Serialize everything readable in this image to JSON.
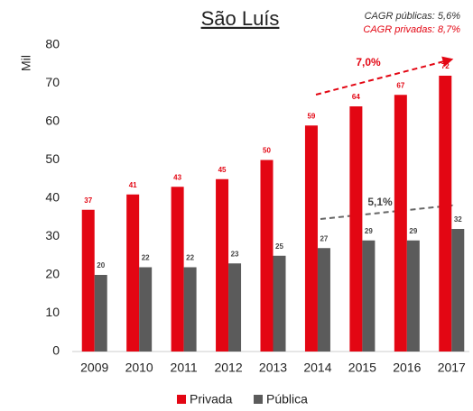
{
  "chart_data": {
    "type": "bar",
    "title": "São Luís",
    "annotations": [
      "CAGR públicas: 5,6%",
      "CAGR privadas: 8,7%",
      "7,0%",
      "5,1%"
    ],
    "y_label": "Mil",
    "categories": [
      "2009",
      "2010",
      "2011",
      "2012",
      "2013",
      "2014",
      "2015",
      "2016",
      "2017"
    ],
    "series": [
      {
        "name": "Privada",
        "color": "#e30613",
        "values": [
          37,
          41,
          43,
          45,
          50,
          59,
          64,
          67,
          72
        ]
      },
      {
        "name": "Pública",
        "color": "#5b5b5b",
        "values": [
          20,
          22,
          22,
          23,
          25,
          27,
          29,
          29,
          32
        ]
      }
    ],
    "ylim": [
      0,
      80
    ],
    "yticks": [
      0,
      10,
      20,
      30,
      40,
      50,
      60,
      70,
      80
    ],
    "grid": false,
    "legend": "bottom"
  }
}
